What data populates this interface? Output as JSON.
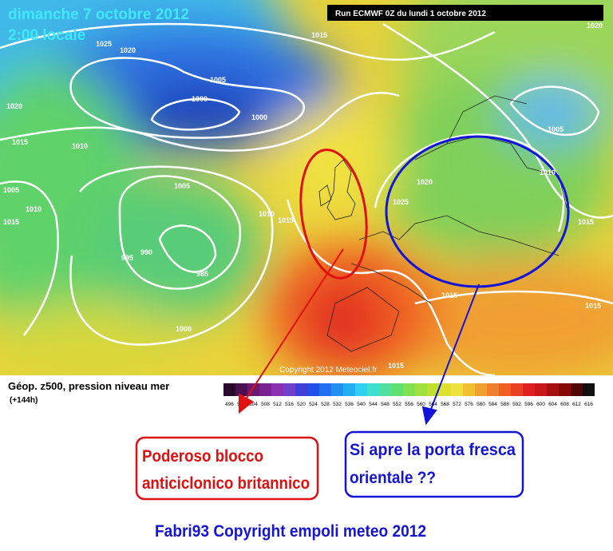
{
  "header": {
    "date": "dimanche 7 octobre 2012",
    "time": "2:00 locale",
    "run": "Run ECMWF 0Z du lundi 1 octobre 2012"
  },
  "map": {
    "isobar_labels": [
      "1020",
      "1025",
      "1020",
      "1015",
      "1005",
      "1000",
      "1020",
      "1000",
      "1015",
      "1010",
      "1005",
      "1010",
      "1005",
      "1020",
      "1025",
      "1005",
      "1010",
      "1015",
      "1010",
      "1015",
      "1015",
      "995",
      "990",
      "985",
      "1000",
      "1015",
      "1015",
      "1015"
    ],
    "copyright": "Copyright 2012 Meteociel.fr"
  },
  "legend": {
    "title": "Géop. z500, pression niveau mer",
    "subtitle": "(+144h)",
    "scale": [
      "496",
      "500",
      "504",
      "508",
      "512",
      "516",
      "520",
      "524",
      "528",
      "532",
      "536",
      "540",
      "544",
      "548",
      "552",
      "556",
      "560",
      "564",
      "568",
      "572",
      "576",
      "580",
      "584",
      "588",
      "592",
      "596",
      "600",
      "604",
      "608",
      "612",
      "616"
    ]
  },
  "annotations": {
    "red_box": [
      "Poderoso blocco",
      "anticiclonico britannico"
    ],
    "blue_box": [
      "Si apre la porta fresca",
      "orientale ??"
    ],
    "footer": "Fabri93 Copyright empoli meteo 2012"
  }
}
